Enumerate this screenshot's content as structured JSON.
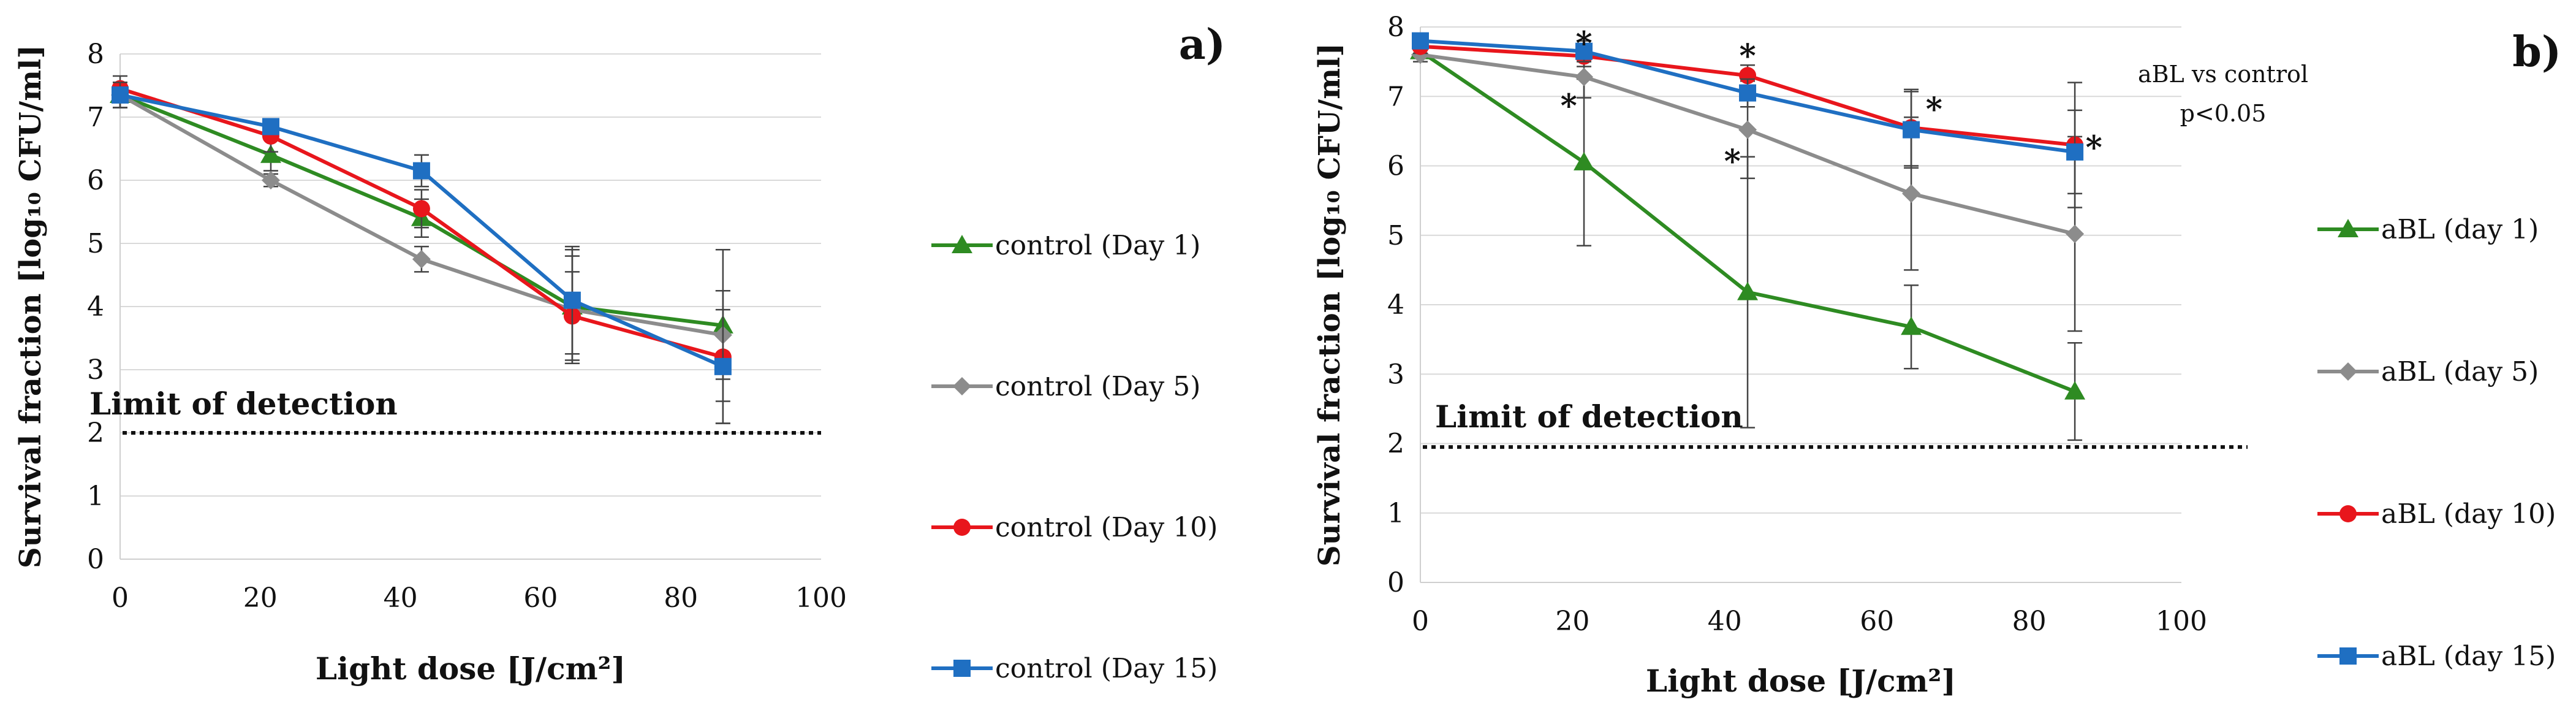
{
  "chart_data": [
    {
      "panel_label": "a)",
      "type": "line",
      "xlabel": "Light dose [J/cm²]",
      "ylabel": "Survival fraction [log₁₀ CFU/ml]",
      "xlim": [
        0,
        100
      ],
      "ylim": [
        0,
        8
      ],
      "x_ticks": [
        "0",
        "20",
        "40",
        "60",
        "80",
        "100"
      ],
      "y_ticks": [
        "0",
        "1",
        "2",
        "3",
        "4",
        "5",
        "6",
        "7",
        "8"
      ],
      "grid": "horizontal",
      "legend_position": "right",
      "reference_line": {
        "label": "Limit of detection",
        "y": 2.0
      },
      "x": [
        0,
        21.5,
        43,
        64.5,
        86
      ],
      "series": [
        {
          "name": "control (Day 1)",
          "color": "#2e8b22",
          "marker": "triangle",
          "values": [
            7.35,
            6.4,
            5.4,
            4.0,
            3.7
          ],
          "errors": [
            0.2,
            0.25,
            0.3,
            0.9,
            1.2
          ]
        },
        {
          "name": "control (Day 5)",
          "color": "#8c8c8c",
          "marker": "diamond",
          "values": [
            7.35,
            6.0,
            4.75,
            3.95,
            3.55
          ],
          "errors": [
            0.2,
            0.1,
            0.2,
            0.85,
            0.7
          ]
        },
        {
          "name": "control (Day 10)",
          "color": "#e8161c",
          "marker": "circle",
          "values": [
            7.45,
            6.7,
            5.55,
            3.85,
            3.2
          ],
          "errors": [
            0.2,
            0.25,
            0.3,
            0.7,
            1.05
          ]
        },
        {
          "name": "control (Day 15)",
          "color": "#1f6fc2",
          "marker": "square",
          "values": [
            7.35,
            6.85,
            6.15,
            4.1,
            3.05
          ],
          "errors": [
            0.2,
            0.1,
            0.25,
            0.85,
            0.9
          ]
        }
      ]
    },
    {
      "panel_label": "b)",
      "type": "line",
      "xlabel": "Light dose [J/cm²]",
      "ylabel": "Survival fraction [log₁₀ CFU/ml]",
      "xlim": [
        0,
        100
      ],
      "ylim": [
        0,
        8
      ],
      "x_ticks": [
        "0",
        "20",
        "40",
        "60",
        "80",
        "100"
      ],
      "y_ticks": [
        "0",
        "1",
        "2",
        "3",
        "4",
        "5",
        "6",
        "7",
        "8"
      ],
      "grid": "horizontal",
      "legend_position": "right",
      "reference_line": {
        "label": "Limit of detection",
        "y": 1.95
      },
      "annotation_lines": [
        "aBL vs control",
        "p<0.05"
      ],
      "significance_marker": "*",
      "x": [
        0,
        21.5,
        43,
        64.5,
        86
      ],
      "series": [
        {
          "name": "aBL (day 1)",
          "color": "#2e8b22",
          "marker": "triangle",
          "values": [
            7.65,
            6.05,
            4.18,
            3.68,
            2.75
          ],
          "errors": [
            0.1,
            1.2,
            1.95,
            0.6,
            0.7
          ]
        },
        {
          "name": "aBL (day 5)",
          "color": "#8c8c8c",
          "marker": "diamond",
          "values": [
            7.6,
            7.28,
            6.52,
            5.6,
            5.02
          ],
          "errors": [
            0.1,
            0.3,
            0.7,
            1.1,
            1.4
          ]
        },
        {
          "name": "aBL (day 10)",
          "color": "#e8161c",
          "marker": "circle",
          "values": [
            7.72,
            7.58,
            7.3,
            6.55,
            6.3
          ],
          "errors": [
            0.1,
            0.15,
            0.15,
            0.55,
            0.9
          ]
        },
        {
          "name": "aBL (day 15)",
          "color": "#1f6fc2",
          "marker": "square",
          "values": [
            7.8,
            7.65,
            7.05,
            6.52,
            6.2
          ],
          "errors": [
            0.1,
            0.15,
            0.2,
            0.55,
            0.6
          ]
        }
      ],
      "significance": [
        {
          "x": 21.5,
          "y": 7.8
        },
        {
          "x": 19.5,
          "y": 6.9
        },
        {
          "x": 43,
          "y": 7.62
        },
        {
          "x": 41,
          "y": 6.1
        },
        {
          "x": 67.5,
          "y": 6.85
        },
        {
          "x": 88.5,
          "y": 6.3
        }
      ]
    }
  ]
}
